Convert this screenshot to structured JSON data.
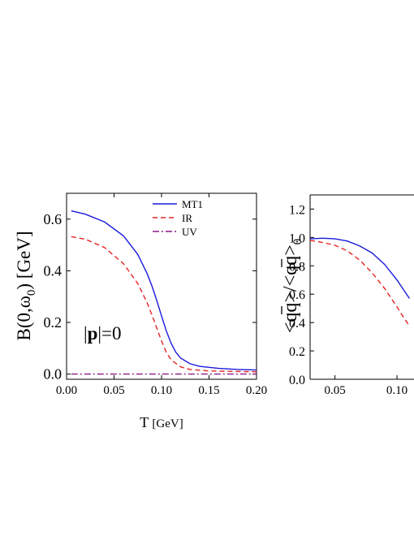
{
  "chart_data": [
    {
      "type": "line",
      "xlabel": "T",
      "xlabel_unit": "[GeV]",
      "ylabel_main": "B(0,ω",
      "ylabel_sub": "0",
      "ylabel_tail": ") [GeV]",
      "xlim": [
        0.0,
        0.2
      ],
      "ylim": [
        -0.02,
        0.7
      ],
      "xticks": [
        "0.00",
        "0.05",
        "0.10",
        "0.15",
        "0.20"
      ],
      "xtick_values": [
        0.0,
        0.05,
        0.1,
        0.15,
        0.2
      ],
      "yticks": [
        "0.0",
        "0.2",
        "0.4",
        "0.6"
      ],
      "ytick_values": [
        0.0,
        0.2,
        0.4,
        0.6
      ],
      "annotation": {
        "bar": "|",
        "bold": "p",
        "tail": "|=0"
      },
      "legend_position": "top-right",
      "series": [
        {
          "name": "MT1",
          "color": "#1a1adb",
          "style": "solid",
          "x": [
            0.005,
            0.02,
            0.04,
            0.06,
            0.075,
            0.085,
            0.09,
            0.095,
            0.1,
            0.105,
            0.11,
            0.115,
            0.12,
            0.13,
            0.14,
            0.16,
            0.18,
            0.2
          ],
          "y": [
            0.632,
            0.619,
            0.589,
            0.535,
            0.463,
            0.388,
            0.34,
            0.285,
            0.225,
            0.168,
            0.12,
            0.085,
            0.062,
            0.04,
            0.03,
            0.022,
            0.018,
            0.016
          ]
        },
        {
          "name": "IR",
          "color": "#e52222",
          "style": "dashed",
          "x": [
            0.005,
            0.02,
            0.04,
            0.06,
            0.075,
            0.085,
            0.09,
            0.095,
            0.1,
            0.105,
            0.11,
            0.12,
            0.13,
            0.15,
            0.2
          ],
          "y": [
            0.532,
            0.522,
            0.49,
            0.427,
            0.35,
            0.275,
            0.228,
            0.178,
            0.128,
            0.085,
            0.055,
            0.028,
            0.018,
            0.012,
            0.009
          ]
        },
        {
          "name": "UV",
          "color": "#8b1a8b",
          "style": "dashdot",
          "x": [
            0.005,
            0.2
          ],
          "y": [
            0.0,
            0.0
          ]
        }
      ]
    },
    {
      "type": "line",
      "ylabel": "<qq>/<qq>",
      "ylabel_sub": "0",
      "xlim": [
        0.03,
        0.115
      ],
      "ylim": [
        0.0,
        1.3
      ],
      "xticks": [
        "0.05",
        "0.10"
      ],
      "xtick_values": [
        0.05,
        0.1
      ],
      "yticks": [
        "0.0",
        "0.2",
        "0.4",
        "0.6",
        "0.8",
        "1.0",
        "1.2"
      ],
      "ytick_values": [
        0.0,
        0.2,
        0.4,
        0.6,
        0.8,
        1.0,
        1.2
      ],
      "series": [
        {
          "color": "#1a1adb",
          "style": "solid",
          "x": [
            0.03,
            0.04,
            0.05,
            0.06,
            0.07,
            0.08,
            0.09,
            0.1,
            0.105,
            0.11
          ],
          "y": [
            0.99,
            0.995,
            0.99,
            0.975,
            0.94,
            0.89,
            0.81,
            0.7,
            0.635,
            0.57
          ]
        },
        {
          "color": "#e52222",
          "style": "dashed",
          "x": [
            0.03,
            0.04,
            0.05,
            0.06,
            0.07,
            0.08,
            0.09,
            0.1,
            0.105,
            0.11
          ],
          "y": [
            0.98,
            0.965,
            0.945,
            0.905,
            0.84,
            0.75,
            0.64,
            0.51,
            0.44,
            0.375
          ]
        }
      ]
    }
  ]
}
